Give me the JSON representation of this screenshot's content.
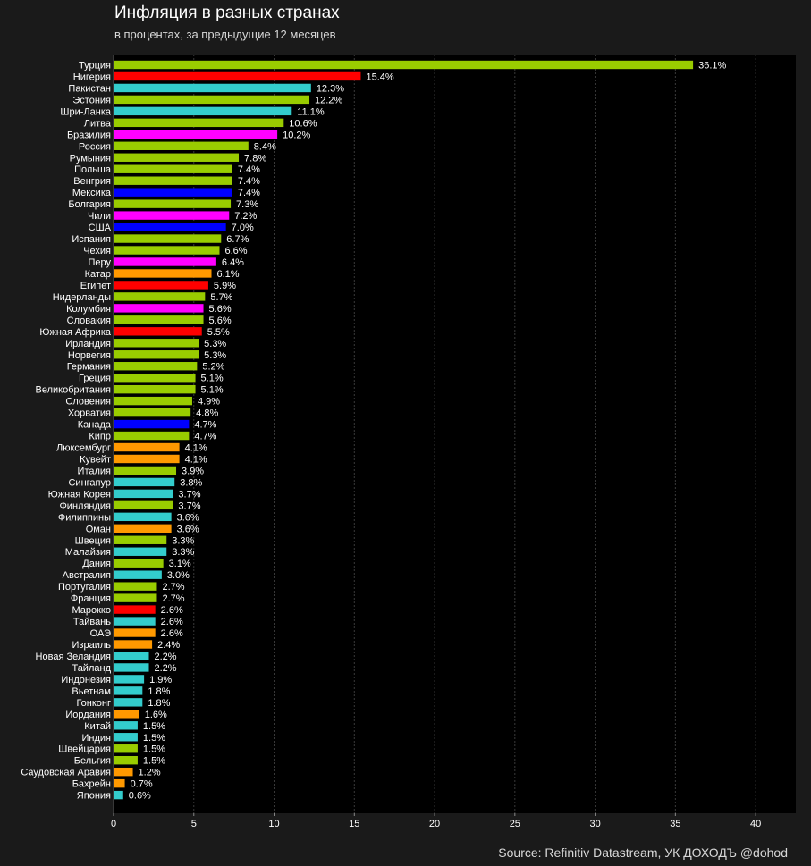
{
  "title": "Инфляция в разных странах",
  "subtitle": "в процентах, за предыдущие 12 месяцев",
  "source": "Source: Refinitiv Datastream, УК ДОХОДЪ @dohod",
  "colors": {
    "background": "#1a1a1a",
    "plot_background": "#000000",
    "grid": "#3a3a3a",
    "europe": "#99cc00",
    "africa": "#ff0000",
    "asia_pacific": "#33cccc",
    "latin_america": "#ff00ff",
    "north_america": "#0000ff",
    "middle_east": "#ff9900"
  },
  "chart_data": {
    "type": "bar",
    "orientation": "horizontal",
    "title": "Инфляция в разных странах",
    "subtitle": "в процентах, за предыдущие 12 месяцев",
    "xlim": [
      0,
      42.5
    ],
    "xticks": [
      0,
      5,
      10,
      15,
      20,
      25,
      30,
      35,
      40
    ],
    "grid": "vertical dotted",
    "value_suffix": "%",
    "categories": [
      "Турция",
      "Нигерия",
      "Пакистан",
      "Эстония",
      "Шри-Ланка",
      "Литва",
      "Бразилия",
      "Россия",
      "Румыния",
      "Польша",
      "Венгрия",
      "Мексика",
      "Болгария",
      "Чили",
      "США",
      "Испания",
      "Чехия",
      "Перу",
      "Катар",
      "Египет",
      "Нидерланды",
      "Колумбия",
      "Словакия",
      "Южная Африка",
      "Ирландия",
      "Норвегия",
      "Германия",
      "Греция",
      "Великобритания",
      "Словения",
      "Хорватия",
      "Канада",
      "Кипр",
      "Люксембург",
      "Кувейт",
      "Италия",
      "Сингапур",
      "Южная Корея",
      "Финляндия",
      "Филиппины",
      "Оман",
      "Швеция",
      "Малайзия",
      "Дания",
      "Австралия",
      "Португалия",
      "Франция",
      "Марокко",
      "Тайвань",
      "ОАЭ",
      "Израиль",
      "Новая Зеландия",
      "Тайланд",
      "Индонезия",
      "Вьетнам",
      "Гонконг",
      "Иордания",
      "Китай",
      "Индия",
      "Швейцария",
      "Бельгия",
      "Саудовская Аравия",
      "Бахрейн",
      "Япония"
    ],
    "values": [
      36.1,
      15.4,
      12.3,
      12.2,
      11.1,
      10.6,
      10.2,
      8.4,
      7.8,
      7.4,
      7.4,
      7.4,
      7.3,
      7.2,
      7.0,
      6.7,
      6.6,
      6.4,
      6.1,
      5.9,
      5.7,
      5.6,
      5.6,
      5.5,
      5.3,
      5.3,
      5.2,
      5.1,
      5.1,
      4.9,
      4.8,
      4.7,
      4.7,
      4.1,
      4.1,
      3.9,
      3.8,
      3.7,
      3.7,
      3.6,
      3.6,
      3.3,
      3.3,
      3.1,
      3.0,
      2.7,
      2.7,
      2.6,
      2.6,
      2.6,
      2.4,
      2.2,
      2.2,
      1.9,
      1.8,
      1.8,
      1.6,
      1.5,
      1.5,
      1.5,
      1.5,
      1.2,
      0.7,
      0.6
    ],
    "bar_colors": [
      "#99cc00",
      "#ff0000",
      "#33cccc",
      "#99cc00",
      "#33cccc",
      "#99cc00",
      "#ff00ff",
      "#99cc00",
      "#99cc00",
      "#99cc00",
      "#99cc00",
      "#0000ff",
      "#99cc00",
      "#ff00ff",
      "#0000ff",
      "#99cc00",
      "#99cc00",
      "#ff00ff",
      "#ff9900",
      "#ff0000",
      "#99cc00",
      "#ff00ff",
      "#99cc00",
      "#ff0000",
      "#99cc00",
      "#99cc00",
      "#99cc00",
      "#99cc00",
      "#99cc00",
      "#99cc00",
      "#99cc00",
      "#0000ff",
      "#99cc00",
      "#ff9900",
      "#ff9900",
      "#99cc00",
      "#33cccc",
      "#33cccc",
      "#99cc00",
      "#33cccc",
      "#ff9900",
      "#99cc00",
      "#33cccc",
      "#99cc00",
      "#33cccc",
      "#99cc00",
      "#99cc00",
      "#ff0000",
      "#33cccc",
      "#ff9900",
      "#ff9900",
      "#33cccc",
      "#33cccc",
      "#33cccc",
      "#33cccc",
      "#33cccc",
      "#ff9900",
      "#33cccc",
      "#33cccc",
      "#99cc00",
      "#99cc00",
      "#ff9900",
      "#ff9900",
      "#33cccc"
    ]
  }
}
